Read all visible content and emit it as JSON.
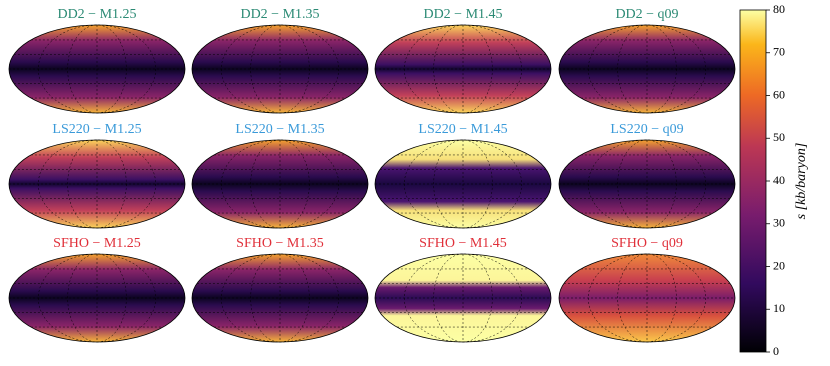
{
  "chart_data": {
    "type": "mollweide-grid",
    "panels": [
      {
        "title": "DD2 − M1.25",
        "color": "#2b8a74"
      },
      {
        "title": "DD2 − M1.35",
        "color": "#2b8a74"
      },
      {
        "title": "DD2 − M1.45",
        "color": "#2b8a74"
      },
      {
        "title": "DD2 − q09",
        "color": "#2b8a74"
      },
      {
        "title": "LS220 − M1.25",
        "color": "#3a9ad9"
      },
      {
        "title": "LS220 − M1.35",
        "color": "#3a9ad9"
      },
      {
        "title": "LS220 − M1.45",
        "color": "#3a9ad9"
      },
      {
        "title": "LS220 − q09",
        "color": "#3a9ad9"
      },
      {
        "title": "SFHO − M1.25",
        "color": "#e0303a"
      },
      {
        "title": "SFHO − M1.35",
        "color": "#e0303a"
      },
      {
        "title": "SFHO − M1.45",
        "color": "#e0303a"
      },
      {
        "title": "SFHO − q09",
        "color": "#e0303a"
      }
    ],
    "colorbar": {
      "label": "s [kb/baryon]",
      "ylim": [
        0,
        80
      ],
      "yticks": [
        0,
        10,
        20,
        30,
        40,
        50,
        60,
        70,
        80
      ]
    }
  }
}
